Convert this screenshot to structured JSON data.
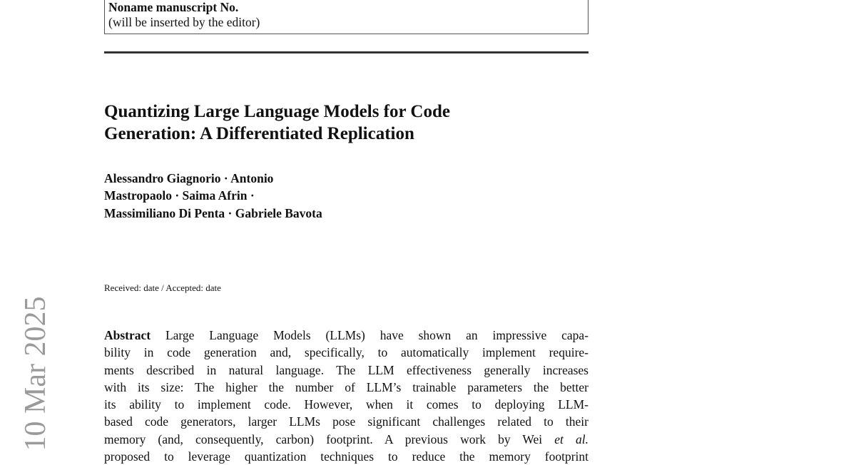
{
  "header_box": {
    "line1": "Noname manuscript No.",
    "line2": "(will be inserted by the editor)"
  },
  "title_lines": [
    "Quantizing Large Language Models for Code",
    "Generation: A Differentiated Replication"
  ],
  "author_lines": [
    "Alessandro Giagnorio · Antonio",
    "Mastropaolo · Saima Afrin ·",
    "Massimiliano Di Penta · Gabriele Bavota"
  ],
  "received": "Received: date / Accepted: date",
  "abstract": {
    "label": "Abstract",
    "lines": [
      "Large Language Models (LLMs) have shown an impressive capa-",
      "bility in code generation and, specifically, to automatically implement require-",
      "ments described in natural language. The LLM effectiveness generally increases",
      "with its size: The higher the number of LLM’s trainable parameters the better",
      "its ability to implement code. However, when it comes to deploying LLM-",
      "based code generators, larger LLMs pose significant challenges related to their",
      "memory (and, consequently, carbon) footprint. A previous work by Wei",
      "proposed to leverage quantization techniques to reduce the memory footprint"
    ],
    "etal": "et al."
  },
  "arxiv_stamp": "10 Mar 2025"
}
